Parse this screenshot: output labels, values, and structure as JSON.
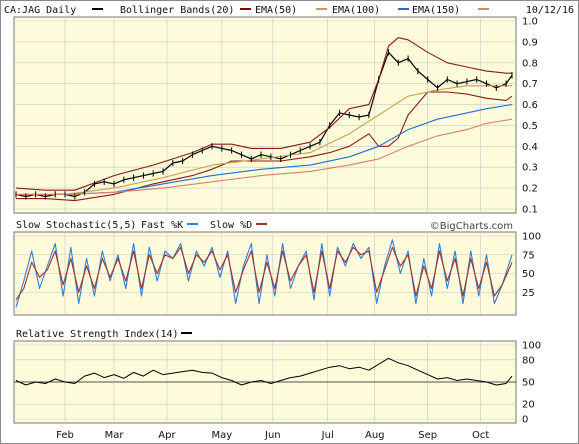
{
  "header": {
    "symbol_label": "CA:JAG Daily",
    "date": "10/12/16",
    "watermark": "©BigCharts.com",
    "legend": [
      {
        "label": "Bollinger Bands(20)",
        "color": "#8b0000"
      },
      {
        "label": "EMA(50)",
        "color": "#c8a04a"
      },
      {
        "label": "EMA(100)",
        "color": "#1e6fd9"
      },
      {
        "label": "EMA(150)",
        "color": "#d4826e"
      }
    ]
  },
  "colors": {
    "panel_bg": "#fdfbda",
    "grid": "#c8c8c8",
    "price": "#000000",
    "bollinger": "#8b1a1a",
    "ema50": "#c8a04a",
    "ema100": "#1e6fd9",
    "ema150": "#d4826e",
    "stoch_fast": "#2f7ed8",
    "stoch_slow": "#a0322d",
    "rsi": "#000000"
  },
  "chart_data": [
    {
      "type": "line",
      "title": "CA:JAG Daily",
      "yticks": [
        "1.0",
        "0.9",
        "0.8",
        "0.7",
        "0.6",
        "0.5",
        "0.4",
        "0.3",
        "0.2",
        "0.1"
      ],
      "ylim": [
        0.1,
        1.0
      ],
      "xticks": [
        "Feb",
        "Mar",
        "Apr",
        "May",
        "Jun",
        "Jul",
        "Aug",
        "Sep",
        "Oct"
      ],
      "series": [
        {
          "name": "CA:JAG",
          "x": [
            0,
            10,
            20,
            30,
            40,
            50,
            60,
            70,
            80,
            90,
            100,
            110,
            120,
            130,
            140,
            150,
            160,
            170,
            180,
            190,
            200,
            210,
            220,
            230,
            240,
            250,
            260,
            270,
            280,
            290,
            300,
            310,
            320,
            330,
            340,
            350,
            360,
            370,
            380,
            390,
            400,
            410,
            420,
            430,
            440,
            450,
            460,
            470,
            480,
            490,
            500,
            506
          ],
          "values": [
            0.17,
            0.16,
            0.17,
            0.16,
            0.17,
            0.17,
            0.16,
            0.18,
            0.22,
            0.23,
            0.22,
            0.24,
            0.25,
            0.26,
            0.27,
            0.28,
            0.32,
            0.33,
            0.36,
            0.38,
            0.4,
            0.39,
            0.38,
            0.36,
            0.34,
            0.36,
            0.35,
            0.34,
            0.36,
            0.38,
            0.4,
            0.42,
            0.5,
            0.56,
            0.55,
            0.54,
            0.55,
            0.72,
            0.85,
            0.8,
            0.82,
            0.76,
            0.72,
            0.68,
            0.72,
            0.7,
            0.71,
            0.72,
            0.7,
            0.68,
            0.7,
            0.74
          ]
        },
        {
          "name": "Bollinger Upper",
          "x": [
            0,
            30,
            60,
            100,
            140,
            180,
            200,
            220,
            240,
            270,
            300,
            320,
            340,
            360,
            370,
            380,
            390,
            400,
            420,
            440,
            460,
            480,
            500,
            506
          ],
          "values": [
            0.2,
            0.19,
            0.19,
            0.26,
            0.31,
            0.37,
            0.41,
            0.41,
            0.39,
            0.39,
            0.42,
            0.49,
            0.58,
            0.6,
            0.72,
            0.88,
            0.92,
            0.91,
            0.85,
            0.8,
            0.78,
            0.76,
            0.75,
            0.75
          ]
        },
        {
          "name": "Bollinger Lower",
          "x": [
            0,
            30,
            60,
            100,
            140,
            180,
            200,
            220,
            240,
            270,
            300,
            320,
            340,
            360,
            370,
            380,
            390,
            400,
            420,
            440,
            460,
            480,
            500,
            506
          ],
          "values": [
            0.15,
            0.15,
            0.14,
            0.17,
            0.22,
            0.26,
            0.29,
            0.33,
            0.33,
            0.33,
            0.35,
            0.37,
            0.4,
            0.46,
            0.4,
            0.4,
            0.44,
            0.55,
            0.66,
            0.66,
            0.65,
            0.63,
            0.62,
            0.64
          ]
        },
        {
          "name": "EMA(50)",
          "x": [
            0,
            50,
            100,
            150,
            200,
            250,
            300,
            340,
            370,
            400,
            430,
            460,
            480,
            506
          ],
          "values": [
            0.17,
            0.17,
            0.2,
            0.25,
            0.31,
            0.34,
            0.37,
            0.46,
            0.55,
            0.64,
            0.67,
            0.69,
            0.69,
            0.69
          ]
        },
        {
          "name": "EMA(100)",
          "x": [
            0,
            50,
            100,
            150,
            200,
            250,
            300,
            340,
            370,
            400,
            430,
            460,
            480,
            506
          ],
          "values": [
            0.17,
            0.17,
            0.18,
            0.22,
            0.26,
            0.29,
            0.31,
            0.35,
            0.4,
            0.48,
            0.53,
            0.56,
            0.58,
            0.6
          ]
        },
        {
          "name": "EMA(150)",
          "x": [
            0,
            50,
            100,
            150,
            200,
            250,
            300,
            340,
            370,
            400,
            430,
            460,
            480,
            506
          ],
          "values": [
            0.17,
            0.17,
            0.18,
            0.2,
            0.23,
            0.26,
            0.28,
            0.31,
            0.34,
            0.4,
            0.45,
            0.48,
            0.51,
            0.53
          ]
        }
      ]
    },
    {
      "type": "line",
      "title": "Slow Stochastic(5,5)",
      "legend": [
        {
          "label": "Fast %K",
          "color": "#2f7ed8"
        },
        {
          "label": "Slow %D",
          "color": "#a0322d"
        }
      ],
      "yticks": [
        "100",
        "75",
        "50",
        "25"
      ],
      "ylim": [
        0,
        100
      ],
      "series": [
        {
          "name": "Fast %K",
          "x": [
            0,
            8,
            16,
            24,
            32,
            40,
            48,
            56,
            64,
            72,
            80,
            88,
            96,
            104,
            112,
            120,
            128,
            136,
            144,
            152,
            160,
            168,
            176,
            184,
            192,
            200,
            208,
            216,
            224,
            232,
            240,
            248,
            256,
            264,
            272,
            280,
            288,
            296,
            304,
            312,
            320,
            328,
            336,
            344,
            352,
            360,
            368,
            376,
            384,
            392,
            400,
            408,
            416,
            424,
            432,
            440,
            448,
            456,
            464,
            472,
            480,
            488,
            496,
            506
          ],
          "values": [
            5,
            40,
            80,
            30,
            60,
            90,
            20,
            85,
            10,
            70,
            20,
            80,
            40,
            75,
            30,
            90,
            20,
            85,
            40,
            80,
            70,
            90,
            40,
            80,
            60,
            85,
            45,
            80,
            10,
            60,
            90,
            10,
            75,
            20,
            90,
            30,
            60,
            80,
            15,
            90,
            20,
            85,
            60,
            90,
            70,
            85,
            10,
            60,
            95,
            50,
            80,
            10,
            70,
            20,
            90,
            30,
            80,
            10,
            80,
            20,
            75,
            10,
            35,
            75
          ]
        },
        {
          "name": "Slow %D",
          "x": [
            0,
            8,
            16,
            24,
            32,
            40,
            48,
            56,
            64,
            72,
            80,
            88,
            96,
            104,
            112,
            120,
            128,
            136,
            144,
            152,
            160,
            168,
            176,
            184,
            192,
            200,
            208,
            216,
            224,
            232,
            240,
            248,
            256,
            264,
            272,
            280,
            288,
            296,
            304,
            312,
            320,
            328,
            336,
            344,
            352,
            360,
            368,
            376,
            384,
            392,
            400,
            408,
            416,
            424,
            432,
            440,
            448,
            456,
            464,
            472,
            480,
            488,
            496,
            506
          ],
          "values": [
            15,
            30,
            65,
            45,
            55,
            80,
            35,
            70,
            25,
            60,
            30,
            70,
            45,
            70,
            40,
            80,
            30,
            75,
            50,
            75,
            70,
            85,
            50,
            75,
            65,
            80,
            55,
            75,
            25,
            55,
            80,
            25,
            65,
            30,
            80,
            40,
            60,
            75,
            25,
            80,
            30,
            80,
            65,
            85,
            75,
            80,
            25,
            55,
            85,
            60,
            75,
            20,
            60,
            30,
            80,
            40,
            70,
            20,
            70,
            30,
            65,
            20,
            35,
            65
          ]
        }
      ]
    },
    {
      "type": "line",
      "title": "Relative Strength Index(14)",
      "yticks": [
        "100",
        "80",
        "50",
        "20",
        "0"
      ],
      "ylim": [
        0,
        100
      ],
      "series": [
        {
          "name": "RSI",
          "x": [
            0,
            10,
            20,
            30,
            40,
            50,
            60,
            70,
            80,
            90,
            100,
            110,
            120,
            130,
            140,
            150,
            160,
            170,
            180,
            190,
            200,
            210,
            220,
            230,
            240,
            250,
            260,
            270,
            280,
            290,
            300,
            310,
            320,
            330,
            340,
            350,
            360,
            370,
            380,
            390,
            400,
            410,
            420,
            430,
            440,
            450,
            460,
            470,
            480,
            490,
            500,
            506
          ],
          "values": [
            52,
            46,
            50,
            48,
            54,
            50,
            48,
            58,
            62,
            56,
            60,
            55,
            63,
            58,
            66,
            60,
            62,
            64,
            66,
            63,
            62,
            56,
            52,
            46,
            50,
            52,
            48,
            52,
            56,
            58,
            62,
            66,
            70,
            72,
            68,
            70,
            66,
            74,
            82,
            76,
            72,
            66,
            60,
            54,
            56,
            52,
            54,
            52,
            50,
            46,
            48,
            58
          ]
        }
      ]
    }
  ]
}
